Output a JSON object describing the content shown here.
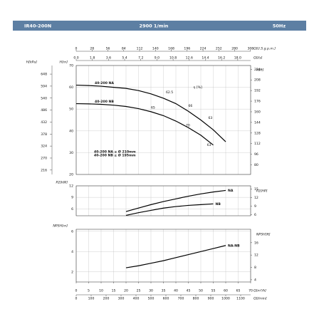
{
  "header": {
    "model": "IR40-200N",
    "speed": "2900 1/min",
    "frequency": "50Hz"
  },
  "chart_data": [
    {
      "type": "line",
      "label_at": "start",
      "ylabel": "H[m]",
      "xlim": [
        0,
        70
      ],
      "ylim": [
        20,
        70
      ],
      "yticks": [
        20,
        30,
        40,
        50,
        60,
        70
      ],
      "y2label": "H[ft]",
      "y2lim": [
        65.6,
        229.7
      ],
      "y2ticks": [
        80,
        96,
        112,
        128,
        144,
        160,
        176,
        192,
        208,
        224
      ],
      "y3label": "H[kPa]",
      "y3lim": [
        196.2,
        686.7
      ],
      "y3ticks": [
        216,
        270,
        324,
        378,
        432,
        486,
        540,
        594,
        648
      ],
      "x2label": "Q[U.S.g.p.m.]",
      "x2lim": [
        0,
        308.2
      ],
      "x2ticks": [
        0,
        28,
        56,
        84,
        112,
        140,
        168,
        196,
        224,
        252,
        280,
        308
      ],
      "x3label": "Q[l/s]",
      "x3lim": [
        0,
        19.44
      ],
      "x3ticks": [
        {
          "value": 0,
          "label": "0.0"
        },
        1.8,
        3.6,
        5.4,
        7.2,
        {
          "value": 9,
          "label": "9.0"
        },
        10.8,
        12.6,
        14.4,
        16.2,
        {
          "value": 18,
          "label": "18.0"
        }
      ],
      "series": [
        {
          "name": "40-200 NA",
          "color": "#000000",
          "x": [
            0,
            5,
            10,
            15,
            20,
            25,
            30,
            35,
            40,
            45,
            50,
            55,
            60
          ],
          "values": [
            61,
            60.8,
            60.5,
            60,
            59.5,
            58.5,
            57,
            55,
            52.5,
            49,
            45,
            40.5,
            35
          ]
        },
        {
          "name": "40-200 NB",
          "color": "#000000",
          "x": [
            0,
            5,
            10,
            15,
            20,
            25,
            30,
            35,
            40,
            45,
            50,
            55
          ],
          "values": [
            52.5,
            52.4,
            52.2,
            51.8,
            51.2,
            50.2,
            48.8,
            47,
            44.5,
            41.5,
            38,
            33.5
          ]
        }
      ],
      "annotations": [
        {
          "text": "η [%]",
          "x": 47,
          "y": 60
        },
        {
          "text": "62.5",
          "x": 36,
          "y": 57.8
        },
        {
          "text": "65",
          "x": 30,
          "y": 50.8
        },
        {
          "text": "66",
          "x": 45,
          "y": 51.5
        },
        {
          "text": "70",
          "x": 44,
          "y": 42.5
        },
        {
          "text": "63",
          "x": 53,
          "y": 46
        },
        {
          "text": "63",
          "x": 52.5,
          "y": 33.5
        }
      ],
      "notes": [
        "40-200 NA ≥ Ø 210mm",
        "40-200 NB ≥ Ø 195mm"
      ]
    },
    {
      "type": "line",
      "label_at": "end",
      "ylabel": "P2[kW]",
      "xlim": [
        0,
        70
      ],
      "ylim": [
        4.2,
        12
      ],
      "yticks": [
        6,
        9,
        12
      ],
      "y2label": "P2[HP]",
      "y2lim": [
        5.63,
        16.09
      ],
      "y2ticks": [
        6,
        9,
        12,
        15
      ],
      "series": [
        {
          "name": "NA",
          "color": "#000000",
          "x": [
            20,
            25,
            30,
            35,
            40,
            45,
            50,
            55,
            60
          ],
          "values": [
            5.3,
            6.2,
            7.1,
            7.9,
            8.6,
            9.3,
            9.9,
            10.4,
            10.8
          ]
        },
        {
          "name": "NB",
          "color": "#000000",
          "x": [
            20,
            25,
            30,
            35,
            40,
            45,
            50,
            55
          ],
          "values": [
            4.3,
            5,
            5.6,
            6.2,
            6.6,
            6.9,
            7.1,
            7.3
          ]
        }
      ]
    },
    {
      "type": "line",
      "label_at": "end",
      "ylabel": "NPSH[m]",
      "xlim": [
        0,
        70
      ],
      "ylim": [
        1,
        6.2
      ],
      "yticks": [
        2,
        4,
        6
      ],
      "y2label": "NPSH[ft]",
      "y2lim": [
        3.28,
        20.34
      ],
      "y2ticks": [
        4,
        8,
        12,
        16
      ],
      "xlabel": "Q[m³/h]",
      "xticks": [
        0,
        5,
        10,
        15,
        20,
        25,
        30,
        35,
        40,
        45,
        50,
        55,
        60,
        65,
        70
      ],
      "x4label": "Q[l/min]",
      "x4lim": [
        0,
        1166.7
      ],
      "x4ticks": [
        0,
        100,
        200,
        300,
        400,
        500,
        600,
        700,
        800,
        900,
        1000,
        1100
      ],
      "series": [
        {
          "name": "NA-NB",
          "color": "#000000",
          "x": [
            20,
            25,
            30,
            35,
            40,
            45,
            50,
            55,
            60
          ],
          "values": [
            2.4,
            2.6,
            2.85,
            3.1,
            3.4,
            3.7,
            4,
            4.3,
            4.6
          ]
        }
      ]
    }
  ]
}
